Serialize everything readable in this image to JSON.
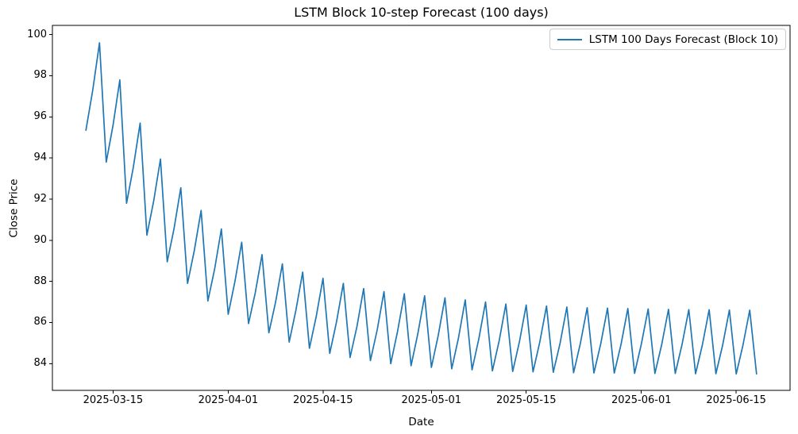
{
  "chart_data": {
    "type": "line",
    "title": "LSTM Block 10-step Forecast (100 days)",
    "xlabel": "Date",
    "ylabel": "Close Price",
    "grid": false,
    "legend_position": "upper right",
    "x_tick_labels": [
      "2025-03-15",
      "2025-04-01",
      "2025-04-15",
      "2025-05-01",
      "2025-05-15",
      "2025-06-01",
      "2025-06-15"
    ],
    "y_tick_labels": [
      84,
      86,
      88,
      90,
      92,
      94,
      96,
      98,
      100
    ],
    "xlim_days_from_first_point": [
      -4.95,
      103.95
    ],
    "ylim": [
      82.7,
      100.45
    ],
    "series": [
      {
        "name": "LSTM 100 Days Forecast (Block 10)",
        "color": "#1f77b4",
        "x": [
          "2025-03-11",
          "2025-03-12",
          "2025-03-13",
          "2025-03-14",
          "2025-03-15",
          "2025-03-16",
          "2025-03-17",
          "2025-03-18",
          "2025-03-19",
          "2025-03-20",
          "2025-03-21",
          "2025-03-22",
          "2025-03-23",
          "2025-03-24",
          "2025-03-25",
          "2025-03-26",
          "2025-03-27",
          "2025-03-28",
          "2025-03-29",
          "2025-03-30",
          "2025-03-31",
          "2025-04-01",
          "2025-04-02",
          "2025-04-03",
          "2025-04-04",
          "2025-04-05",
          "2025-04-06",
          "2025-04-07",
          "2025-04-08",
          "2025-04-09",
          "2025-04-10",
          "2025-04-11",
          "2025-04-12",
          "2025-04-13",
          "2025-04-14",
          "2025-04-15",
          "2025-04-16",
          "2025-04-17",
          "2025-04-18",
          "2025-04-19",
          "2025-04-20",
          "2025-04-21",
          "2025-04-22",
          "2025-04-23",
          "2025-04-24",
          "2025-04-25",
          "2025-04-26",
          "2025-04-27",
          "2025-04-28",
          "2025-04-29",
          "2025-04-30",
          "2025-05-01",
          "2025-05-02",
          "2025-05-03",
          "2025-05-04",
          "2025-05-05",
          "2025-05-06",
          "2025-05-07",
          "2025-05-08",
          "2025-05-09",
          "2025-05-10",
          "2025-05-11",
          "2025-05-12",
          "2025-05-13",
          "2025-05-14",
          "2025-05-15",
          "2025-05-16",
          "2025-05-17",
          "2025-05-18",
          "2025-05-19",
          "2025-05-20",
          "2025-05-21",
          "2025-05-22",
          "2025-05-23",
          "2025-05-24",
          "2025-05-25",
          "2025-05-26",
          "2025-05-27",
          "2025-05-28",
          "2025-05-29",
          "2025-05-30",
          "2025-05-31",
          "2025-06-01",
          "2025-06-02",
          "2025-06-03",
          "2025-06-04",
          "2025-06-05",
          "2025-06-06",
          "2025-06-07",
          "2025-06-08",
          "2025-06-09",
          "2025-06-10",
          "2025-06-11",
          "2025-06-12",
          "2025-06-13",
          "2025-06-14",
          "2025-06-15",
          "2025-06-16",
          "2025-06-17",
          "2025-06-18"
        ],
        "y": [
          95.35,
          97.3,
          99.6,
          93.8,
          95.6,
          97.8,
          91.8,
          93.55,
          95.7,
          90.25,
          91.9,
          93.95,
          88.95,
          90.55,
          92.55,
          87.9,
          89.5,
          91.45,
          87.05,
          88.6,
          90.55,
          86.4,
          88.0,
          89.9,
          85.95,
          87.45,
          89.3,
          85.5,
          87.0,
          88.85,
          85.05,
          86.6,
          88.45,
          84.75,
          86.3,
          88.15,
          84.5,
          86.05,
          87.9,
          84.3,
          85.8,
          87.65,
          84.15,
          85.65,
          87.5,
          84.0,
          85.55,
          87.4,
          83.9,
          85.45,
          87.3,
          83.82,
          85.35,
          87.2,
          83.75,
          85.25,
          87.1,
          83.7,
          85.2,
          87.0,
          83.65,
          85.1,
          86.9,
          83.62,
          85.07,
          86.85,
          83.6,
          85.05,
          86.8,
          83.58,
          85.0,
          86.75,
          83.56,
          85.0,
          86.72,
          83.55,
          84.97,
          86.7,
          83.54,
          84.95,
          86.68,
          83.53,
          84.95,
          86.66,
          83.52,
          84.92,
          86.64,
          83.52,
          84.92,
          86.63,
          83.51,
          84.9,
          86.62,
          83.51,
          84.9,
          86.61,
          83.5,
          84.9,
          86.6,
          83.5
        ]
      }
    ]
  }
}
